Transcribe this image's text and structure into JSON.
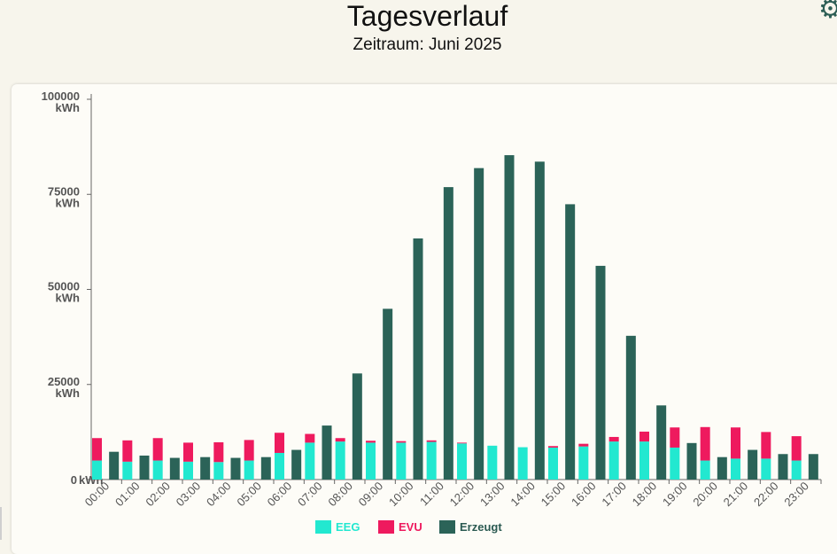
{
  "header": {
    "title": "Tagesverlauf",
    "subtitle": "Zeitraum: Juni 2025",
    "settings_icon": "gear-icon"
  },
  "colors": {
    "eeg": "#22e8d0",
    "evu": "#ee1a5e",
    "erzeugt": "#2b6358",
    "axis": "#666666",
    "background": "#fdfcf7"
  },
  "chart_data": {
    "type": "bar",
    "title": "Tagesverlauf",
    "subtitle": "Zeitraum: Juni 2025",
    "ylim": [
      0,
      100000
    ],
    "unit": "kWh",
    "y_ticks": [
      {
        "value": "0",
        "unit": "kWh"
      },
      {
        "value": "25000",
        "unit": "kWh"
      },
      {
        "value": "50000",
        "unit": "kWh"
      },
      {
        "value": "75000",
        "unit": "kWh"
      },
      {
        "value": "100000",
        "unit": "kWh"
      }
    ],
    "categories": [
      "00:00",
      "01:00",
      "02:00",
      "03:00",
      "04:00",
      "05:00",
      "06:00",
      "07:00",
      "08:00",
      "09:00",
      "10:00",
      "11:00",
      "12:00",
      "13:00",
      "14:00",
      "15:00",
      "16:00",
      "17:00",
      "18:00",
      "19:00",
      "20:00",
      "21:00",
      "22:00",
      "23:00"
    ],
    "series": [
      {
        "name": "EEG",
        "stack": "verbrauch",
        "values": [
          5000,
          4700,
          5000,
          4700,
          4600,
          5000,
          7000,
          9700,
          10000,
          9700,
          9700,
          9900,
          9500,
          8900,
          8500,
          8400,
          8700,
          10000,
          10000,
          8400,
          5000,
          5500,
          5500,
          5000
        ]
      },
      {
        "name": "EVU",
        "stack": "verbrauch",
        "values": [
          5900,
          5600,
          5900,
          5000,
          5200,
          5400,
          5300,
          2300,
          900,
          500,
          400,
          400,
          200,
          0,
          0,
          400,
          700,
          1200,
          2600,
          5300,
          8800,
          8200,
          7000,
          6400
        ]
      },
      {
        "name": "Erzeugt",
        "stack": "erzeugt",
        "values": [
          7300,
          6300,
          5700,
          5900,
          5700,
          5900,
          7800,
          14200,
          27900,
          44900,
          63400,
          76900,
          81900,
          85300,
          83600,
          72400,
          56200,
          37800,
          19500,
          9600,
          5900,
          7800,
          6700,
          6700
        ]
      }
    ],
    "legend": [
      "EEG",
      "EVU",
      "Erzeugt"
    ],
    "legend_position": "bottom-center"
  }
}
